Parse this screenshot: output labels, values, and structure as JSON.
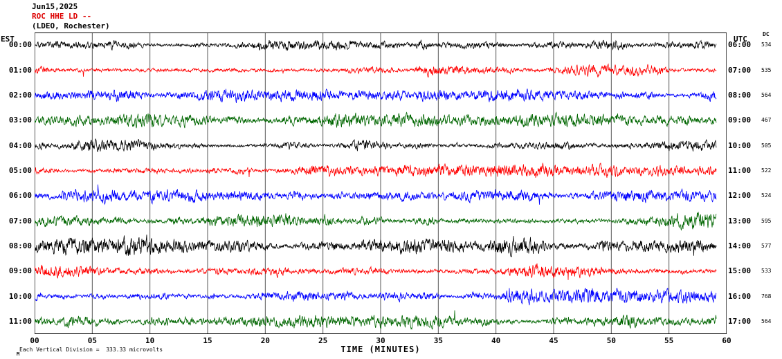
{
  "header": {
    "date": "Jun15,2025",
    "station": "ROC HHE LD --",
    "location": "(LDEO, Rochester)"
  },
  "axes": {
    "left_label": "EST",
    "right_label": "UTC",
    "dc_label": "DC",
    "x_title": "TIME (MINUTES)",
    "x_ticks": [
      "00",
      "05",
      "10",
      "15",
      "20",
      "25",
      "30",
      "35",
      "40",
      "45",
      "50",
      "55",
      "60"
    ]
  },
  "footer": {
    "scale_note": "Each Vertical Division =  333.33 microvolts",
    "mark": "M"
  },
  "chart_data": {
    "type": "line",
    "subtype": "helicorder-seismogram",
    "station_id": "ROC HHE LD",
    "x_range_minutes": [
      0,
      60
    ],
    "minutes_per_division": 5,
    "microvolts_per_vertical_division": 333.33,
    "trace_color_cycle": [
      "#000000",
      "#ff0000",
      "#0000ff",
      "#006600"
    ],
    "rows": [
      {
        "est": "00:00",
        "utc": "06:00",
        "dc": "534",
        "color": "#000000",
        "amp": 7
      },
      {
        "est": "01:00",
        "utc": "07:00",
        "dc": "535",
        "color": "#ff0000",
        "amp": 8
      },
      {
        "est": "02:00",
        "utc": "08:00",
        "dc": "564",
        "color": "#0000ff",
        "amp": 8
      },
      {
        "est": "03:00",
        "utc": "09:00",
        "dc": "467",
        "color": "#006600",
        "amp": 7
      },
      {
        "est": "04:00",
        "utc": "10:00",
        "dc": "505",
        "color": "#000000",
        "amp": 7
      },
      {
        "est": "05:00",
        "utc": "11:00",
        "dc": "522",
        "color": "#ff0000",
        "amp": 8
      },
      {
        "est": "06:00",
        "utc": "12:00",
        "dc": "524",
        "color": "#0000ff",
        "amp": 8
      },
      {
        "est": "07:00",
        "utc": "13:00",
        "dc": "595",
        "color": "#006600",
        "amp": 10
      },
      {
        "est": "08:00",
        "utc": "14:00",
        "dc": "577",
        "color": "#000000",
        "amp": 10
      },
      {
        "est": "09:00",
        "utc": "15:00",
        "dc": "533",
        "color": "#ff0000",
        "amp": 9
      },
      {
        "est": "10:00",
        "utc": "16:00",
        "dc": "768",
        "color": "#0000ff",
        "amp": 8
      },
      {
        "est": "11:00",
        "utc": "17:00",
        "dc": "564",
        "color": "#006600",
        "amp": 8
      }
    ]
  }
}
